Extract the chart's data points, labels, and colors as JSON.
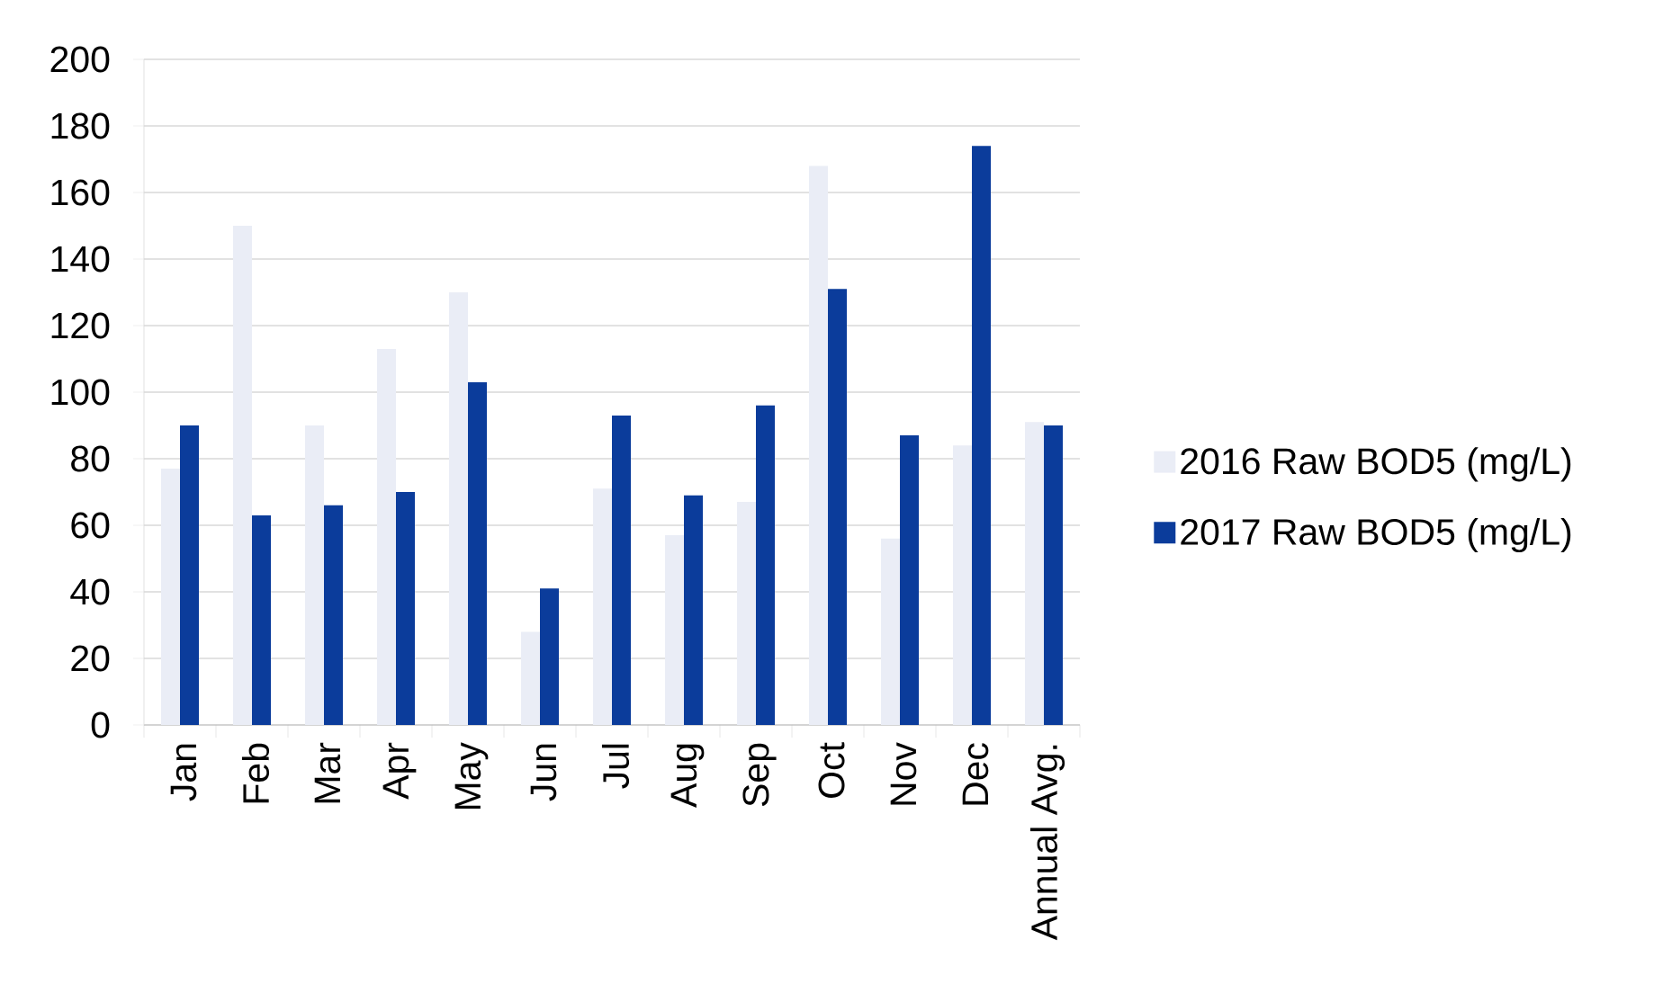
{
  "chart_data": {
    "type": "bar",
    "categories": [
      "Jan",
      "Feb",
      "Mar",
      "Apr",
      "May",
      "Jun",
      "Jul",
      "Aug",
      "Sep",
      "Oct",
      "Nov",
      "Dec",
      "Annual Avg."
    ],
    "series": [
      {
        "name": "2016 Raw BOD5 (mg/L)",
        "color": "#eaedf6",
        "values": [
          77,
          150,
          90,
          113,
          130,
          28,
          71,
          57,
          67,
          168,
          56,
          84,
          91
        ]
      },
      {
        "name": "2017 Raw BOD5 (mg/L)",
        "color": "#0b3c9b",
        "values": [
          90,
          63,
          66,
          70,
          103,
          41,
          93,
          69,
          96,
          131,
          87,
          174,
          90
        ]
      }
    ],
    "ylim": [
      0,
      200
    ],
    "yticks": [
      0,
      20,
      40,
      60,
      80,
      100,
      120,
      140,
      160,
      180,
      200
    ],
    "grid": "y",
    "legend": "right"
  }
}
